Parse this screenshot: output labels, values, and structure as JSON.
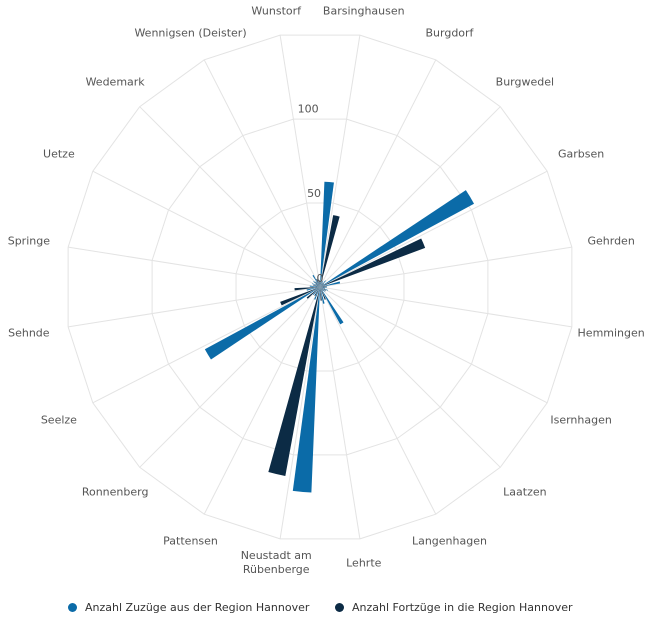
{
  "chart_data": {
    "type": "polar-bar",
    "categories": [
      "Wunstorf",
      "Barsinghausen",
      "Burgdorf",
      "Burgwedel",
      "Garbsen",
      "Gehrden",
      "Hemmingen",
      "Isernhagen",
      "Laatzen",
      "Langenhagen",
      "Lehrte",
      "Neustadt am Rübenberge",
      "Pattensen",
      "Ronnenberg",
      "Seelze",
      "Sehnde",
      "Springe",
      "Uetze",
      "Wedemark",
      "Wennigsen (Deister)"
    ],
    "series": [
      {
        "name": "Anzahl Zuzüge aus der Region Hannover",
        "color": "#0b6ba8",
        "values": [
          5,
          62,
          4,
          5,
          103,
          12,
          4,
          5,
          4,
          25,
          10,
          121,
          8,
          6,
          77,
          8,
          6,
          5,
          5,
          8
        ]
      },
      {
        "name": "Anzahl Fortzüge in die Region Hannover",
        "color": "#0c2b45",
        "values": [
          4,
          43,
          3,
          3,
          66,
          4,
          3,
          4,
          3,
          8,
          8,
          113,
          6,
          10,
          25,
          15,
          4,
          3,
          4,
          5
        ]
      }
    ],
    "ylim": [
      0,
      150
    ],
    "yticks": [
      0,
      50,
      100
    ],
    "grid": true,
    "legend": "bottom"
  }
}
